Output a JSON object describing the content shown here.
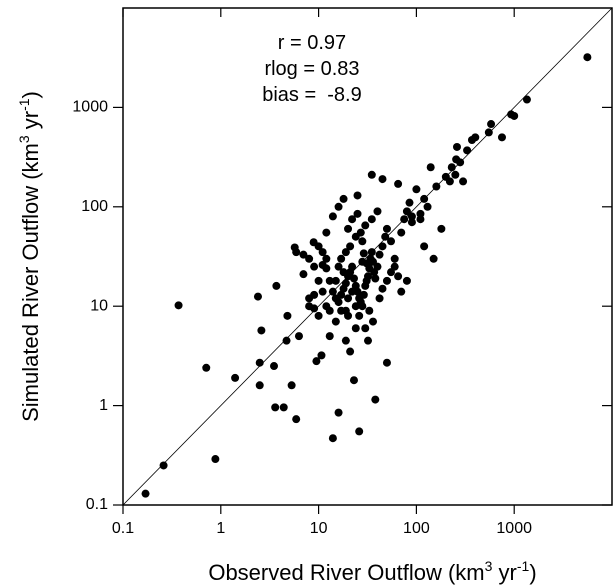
{
  "chart_data": {
    "type": "scatter",
    "xscale": "log",
    "yscale": "log",
    "xlabel": [
      "Observed River Outflow (km",
      "3",
      " yr",
      "-1",
      ")"
    ],
    "ylabel": [
      "Simulated River Outflow (km",
      "3",
      " yr",
      "-1",
      ")"
    ],
    "annotations": [
      "r = 0.97",
      "rlog = 0.83",
      "bias =  -8.9"
    ],
    "xlim": [
      0.1,
      10000
    ],
    "ylim": [
      0.1,
      10000
    ],
    "xticks": [
      0.1,
      1,
      10,
      100,
      1000
    ],
    "yticks": [
      0.1,
      1,
      10,
      100,
      1000
    ],
    "identity_line": true,
    "color": "#000000",
    "x": [
      0.17,
      0.26,
      0.88,
      0.37,
      0.71,
      1.4,
      2.5,
      2.5,
      2.4,
      2.6,
      3.5,
      3.6,
      4.4,
      4.7,
      3.7,
      4.8,
      5.9,
      6.3,
      5.7,
      5.9,
      5.3,
      9.5,
      10.7,
      8.9,
      7,
      8,
      9,
      10,
      11,
      12,
      13,
      14,
      15,
      16,
      17,
      18,
      19,
      20,
      21,
      22,
      23,
      24,
      25,
      26,
      27,
      28,
      29,
      30,
      31,
      32,
      33,
      34,
      35,
      36,
      37,
      38,
      40,
      42,
      45,
      48,
      50,
      55,
      60,
      65,
      70,
      75,
      80,
      85,
      90,
      100,
      12,
      14,
      16,
      18,
      20,
      22,
      25,
      28,
      30,
      32,
      13,
      15,
      17,
      19,
      21,
      24,
      14,
      16,
      26,
      38,
      23,
      50,
      11,
      10,
      9,
      8,
      7,
      12,
      13,
      16,
      17,
      19,
      21,
      24,
      27,
      30,
      35,
      40,
      20,
      22,
      24,
      26,
      33,
      36,
      42,
      45,
      50,
      55,
      60,
      70,
      80,
      90,
      110,
      130,
      160,
      180,
      150,
      120,
      200,
      220,
      250,
      280,
      255,
      260,
      330,
      370,
      400,
      550,
      580,
      750,
      930,
      1000,
      1350,
      5600,
      300,
      230,
      140,
      120,
      65,
      45,
      35,
      25,
      110,
      28,
      29,
      31,
      18,
      19,
      20,
      15,
      12,
      11,
      10,
      9,
      8
    ],
    "y": [
      0.13,
      0.25,
      0.29,
      10.2,
      2.4,
      1.9,
      1.6,
      2.7,
      12.5,
      5.7,
      2.5,
      0.96,
      0.96,
      4.5,
      16,
      8,
      0.73,
      5,
      39,
      35,
      1.6,
      2.8,
      3.2,
      44,
      21,
      12,
      9.5,
      8,
      26,
      30,
      18,
      14,
      12,
      11,
      13,
      15,
      17,
      20,
      22,
      25,
      19,
      16,
      14,
      12,
      11,
      10,
      13,
      16,
      18,
      20,
      24,
      30,
      35,
      28,
      22,
      19,
      25,
      33,
      40,
      50,
      60,
      45,
      30,
      20,
      55,
      75,
      90,
      110,
      70,
      150,
      55,
      80,
      100,
      120,
      60,
      75,
      85,
      45,
      6,
      4.5,
      5,
      7,
      9,
      4.5,
      3.5,
      6,
      0.47,
      0.85,
      0.55,
      1.15,
      1.8,
      2.7,
      14,
      18,
      25,
      30,
      33,
      10,
      9,
      25,
      30,
      35,
      40,
      50,
      55,
      65,
      75,
      90,
      12,
      14,
      10,
      8,
      9,
      7,
      12,
      15,
      18,
      22,
      25,
      14,
      18,
      80,
      85,
      100,
      160,
      60,
      30,
      40,
      200,
      180,
      210,
      280,
      300,
      400,
      370,
      470,
      500,
      560,
      680,
      500,
      850,
      820,
      1200,
      3200,
      180,
      250,
      250,
      120,
      170,
      190,
      210,
      130,
      75,
      28,
      34,
      27,
      22,
      9,
      8,
      18,
      24,
      35,
      40,
      13,
      10
    ]
  }
}
